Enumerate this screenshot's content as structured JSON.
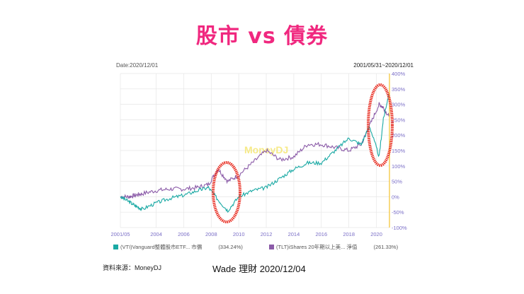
{
  "slide": {
    "title": "股市 vs 債券",
    "source": "資料來源：MoneyDJ",
    "author": "Wade 理財 2020/12/04"
  },
  "chart_header": {
    "date": "Date:2020/12/01",
    "range": "2001/05/31~2020/12/01",
    "watermark": "MoneyDJ"
  },
  "legend": {
    "items": [
      {
        "label": "(VTI)Vanguard整體股市ETF... 市價",
        "value": "(334.24%)",
        "color": "#1aa9a4"
      },
      {
        "label": "(TLT)iShares 20年期以上美... 淨值",
        "value": "(261.33%)",
        "color": "#8b5ba8"
      }
    ]
  },
  "colors": {
    "title": "#f0287f",
    "vti": "#1aa9a4",
    "tlt": "#8b5ba8",
    "highlight_circle": "#e8281c",
    "grid": "#e6e6e6",
    "axis_right": "#f0b400",
    "tick_label": "#7b6fc7"
  },
  "chart_data": {
    "type": "line",
    "title": "股市 vs 債券",
    "subtitle": "2001/05/31~2020/12/01",
    "xlabel": "",
    "ylabel": "",
    "x_ticks": [
      "2001/05",
      "2004",
      "2006",
      "2008",
      "2010",
      "2012",
      "2014",
      "2016",
      "2018",
      "2020"
    ],
    "y_ticks": [
      "400%",
      "350%",
      "300%",
      "250%",
      "200%",
      "150%",
      "100%",
      "50%",
      "0%",
      "-50%",
      "-100%"
    ],
    "ylim": [
      -100,
      400
    ],
    "grid": true,
    "legend_position": "bottom",
    "x": [
      2001.4,
      2002,
      2002.5,
      2003,
      2004,
      2005,
      2006,
      2007,
      2007.8,
      2008.5,
      2009.2,
      2010,
      2011,
      2012,
      2013,
      2014,
      2015,
      2016,
      2017,
      2018,
      2018.9,
      2019.5,
      2020.2,
      2020.5,
      2020.9
    ],
    "series": [
      {
        "name": "(VTI)Vanguard整體股市ETF... 市價",
        "final_value_pct": 334.24,
        "values": [
          0,
          -15,
          -30,
          -40,
          -20,
          -5,
          5,
          20,
          30,
          -10,
          -45,
          0,
          20,
          30,
          60,
          90,
          110,
          110,
          150,
          190,
          170,
          230,
          130,
          250,
          334
        ]
      },
      {
        "name": "(TLT)iShares 20年期以上美... 淨值",
        "final_value_pct": 261.33,
        "values": [
          0,
          0,
          5,
          10,
          20,
          25,
          25,
          30,
          40,
          90,
          50,
          70,
          110,
          150,
          120,
          130,
          170,
          170,
          160,
          150,
          170,
          230,
          300,
          290,
          261
        ]
      }
    ],
    "annotations": [
      "red circle around 2008-2009 crash",
      "red circle around 2020 crash"
    ]
  }
}
